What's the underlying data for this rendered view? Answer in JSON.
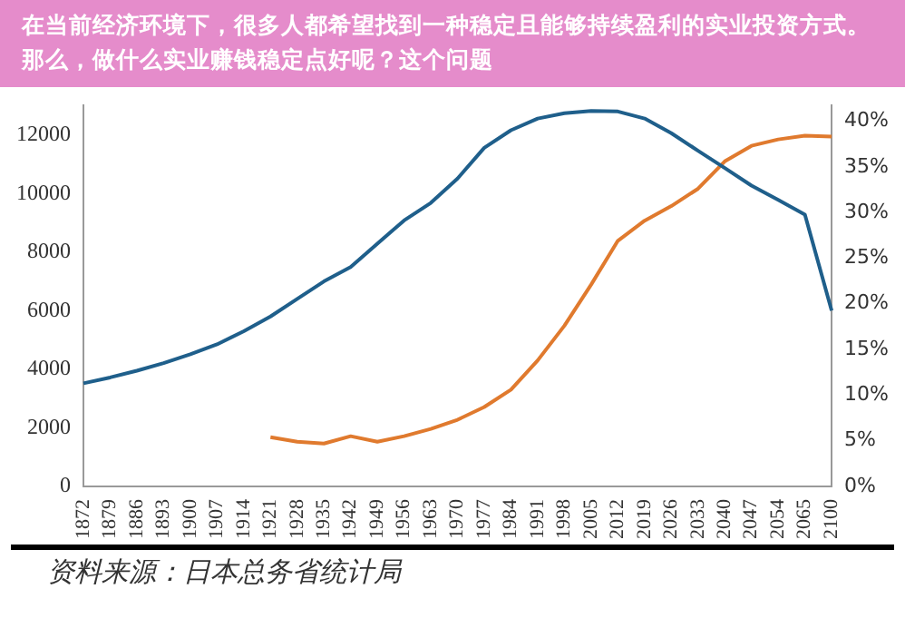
{
  "chart_data": {
    "type": "line",
    "title": "在当前经济环境下，很多人都希望找到一种稳定且能够持续盈利的实业投资方式。那么，做什么实业赚钱稳定点好呢？这个问题",
    "categories": [
      "1872",
      "1879",
      "1886",
      "1893",
      "1900",
      "1907",
      "1914",
      "1921",
      "1928",
      "1935",
      "1942",
      "1949",
      "1956",
      "1963",
      "1970",
      "1977",
      "1984",
      "1991",
      "1998",
      "2005",
      "2012",
      "2019",
      "2026",
      "2033",
      "2040",
      "2047",
      "2054",
      "2065",
      "2100"
    ],
    "series": [
      {
        "color": "#1f5f8b",
        "values": [
          3520,
          3720,
          3950,
          4210,
          4510,
          4850,
          5300,
          5800,
          6400,
          7000,
          7490,
          8290,
          9080,
          9680,
          10510,
          11560,
          12160,
          12560,
          12740,
          12820,
          12800,
          12560,
          12060,
          11460,
          10870,
          10270,
          9780,
          9280,
          6000
        ]
      },
      {
        "color": "#e07a2e",
        "axis": "y2",
        "values": [
          null,
          null,
          null,
          null,
          null,
          null,
          null,
          5.4,
          4.9,
          4.7,
          5.5,
          4.9,
          5.5,
          6.3,
          7.3,
          8.7,
          10.6,
          13.8,
          17.6,
          22.1,
          26.9,
          29.1,
          30.7,
          32.6,
          35.6,
          37.3,
          38.0,
          38.4,
          38.3
        ]
      }
    ],
    "ylim": [
      0,
      13000
    ],
    "yticks": [
      0,
      2000,
      4000,
      6000,
      8000,
      10000,
      12000
    ],
    "y2lim": [
      0,
      41.7
    ],
    "y2ticks": [
      {
        "value": 0,
        "label": "0%"
      },
      {
        "value": 5,
        "label": "5%"
      },
      {
        "value": 10,
        "label": "10%"
      },
      {
        "value": 15,
        "label": "15%"
      },
      {
        "value": 20,
        "label": "20%"
      },
      {
        "value": 25,
        "label": "25%"
      },
      {
        "value": 30,
        "label": "30%"
      },
      {
        "value": 35,
        "label": "35%"
      },
      {
        "value": 40,
        "label": "40%"
      }
    ],
    "grid": false,
    "legend": false,
    "marker": "none",
    "line_style": "solid",
    "annotations": [
      "资料来源：日本总务省统计局"
    ]
  }
}
